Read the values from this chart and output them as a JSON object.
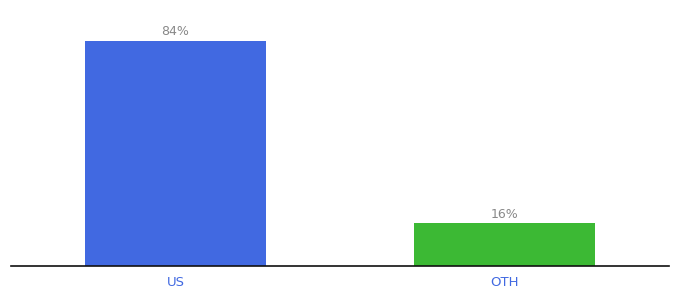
{
  "categories": [
    "US",
    "OTH"
  ],
  "values": [
    84,
    16
  ],
  "bar_colors": [
    "#4169E1",
    "#3CB934"
  ],
  "labels": [
    "84%",
    "16%"
  ],
  "background_color": "#ffffff",
  "bar_width": 0.55,
  "ylim": [
    0,
    95
  ],
  "label_fontsize": 9,
  "tick_fontsize": 9.5,
  "tick_color": "#4169E1",
  "label_color": "#888888",
  "xlim": [
    -0.5,
    1.5
  ]
}
